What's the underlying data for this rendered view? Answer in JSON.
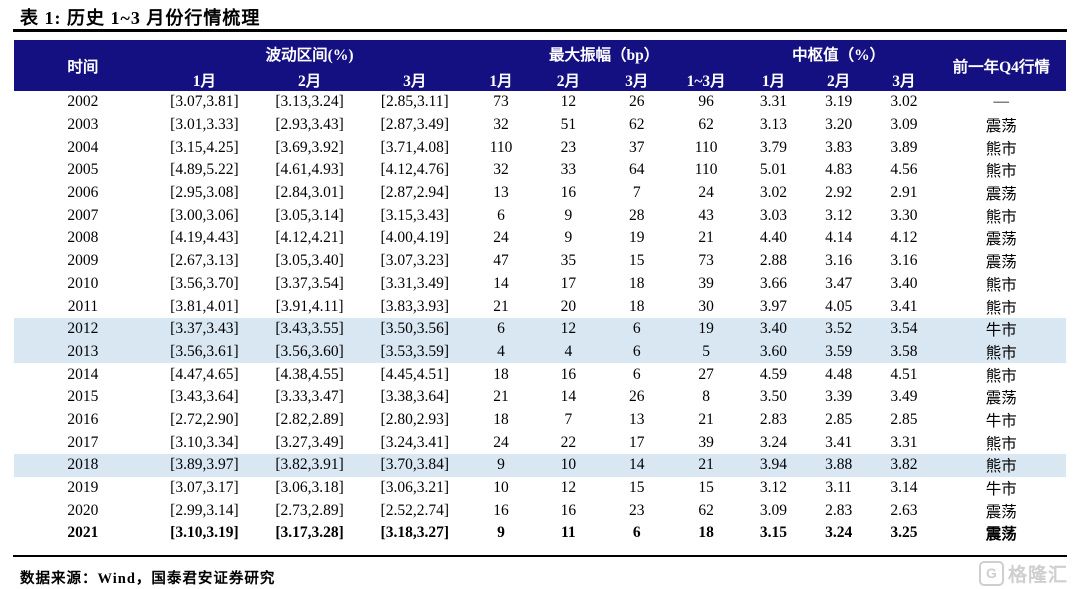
{
  "page": {
    "title": "表 1:  历史 1~3 月份行情梳理",
    "source_note": "数据来源：Wind，国泰君安证券研究",
    "watermark": {
      "icon_letter": "G",
      "text": "格隆汇"
    }
  },
  "colors": {
    "header_bg": "#141082",
    "row_highlight": "#D9E7F3",
    "watermark_gray": "#CFCFCF"
  },
  "table": {
    "col_time": "时间",
    "col_q4": "前一年Q4行情",
    "group_range": {
      "label": "波动区间(%)",
      "sub": [
        "1月",
        "2月",
        "3月"
      ]
    },
    "group_amplitude": {
      "label": "最大振幅（bp）",
      "sub": [
        "1月",
        "2月",
        "3月",
        "1~3月"
      ]
    },
    "group_center": {
      "label": "中枢值（%）",
      "sub": [
        "1月",
        "2月",
        "3月"
      ]
    },
    "row_keys": [
      "year",
      "w1",
      "w2",
      "w3",
      "a1",
      "a2",
      "a3",
      "a13",
      "c1",
      "c2",
      "c3",
      "q4"
    ],
    "highlight_years": [
      "2012",
      "2013",
      "2018"
    ],
    "bold_years": [
      "2021"
    ],
    "rows": [
      [
        "2002",
        "[3.07,3.81]",
        "[3.13,3.24]",
        "[2.85,3.11]",
        "73",
        "12",
        "26",
        "96",
        "3.31",
        "3.19",
        "3.02",
        "—"
      ],
      [
        "2003",
        "[3.01,3.33]",
        "[2.93,3.43]",
        "[2.87,3.49]",
        "32",
        "51",
        "62",
        "62",
        "3.13",
        "3.20",
        "3.09",
        "震荡"
      ],
      [
        "2004",
        "[3.15,4.25]",
        "[3.69,3.92]",
        "[3.71,4.08]",
        "110",
        "23",
        "37",
        "110",
        "3.79",
        "3.83",
        "3.89",
        "熊市"
      ],
      [
        "2005",
        "[4.89,5.22]",
        "[4.61,4.93]",
        "[4.12,4.76]",
        "32",
        "33",
        "64",
        "110",
        "5.01",
        "4.83",
        "4.56",
        "熊市"
      ],
      [
        "2006",
        "[2.95,3.08]",
        "[2.84,3.01]",
        "[2.87,2.94]",
        "13",
        "16",
        "7",
        "24",
        "3.02",
        "2.92",
        "2.91",
        "震荡"
      ],
      [
        "2007",
        "[3.00,3.06]",
        "[3.05,3.14]",
        "[3.15,3.43]",
        "6",
        "9",
        "28",
        "43",
        "3.03",
        "3.12",
        "3.30",
        "熊市"
      ],
      [
        "2008",
        "[4.19,4.43]",
        "[4.12,4.21]",
        "[4.00,4.19]",
        "24",
        "9",
        "19",
        "21",
        "4.40",
        "4.14",
        "4.12",
        "震荡"
      ],
      [
        "2009",
        "[2.67,3.13]",
        "[3.05,3.40]",
        "[3.07,3.23]",
        "47",
        "35",
        "15",
        "73",
        "2.88",
        "3.16",
        "3.16",
        "震荡"
      ],
      [
        "2010",
        "[3.56,3.70]",
        "[3.37,3.54]",
        "[3.31,3.49]",
        "14",
        "17",
        "18",
        "39",
        "3.66",
        "3.47",
        "3.40",
        "熊市"
      ],
      [
        "2011",
        "[3.81,4.01]",
        "[3.91,4.11]",
        "[3.83,3.93]",
        "21",
        "20",
        "18",
        "30",
        "3.97",
        "4.05",
        "3.41",
        "熊市"
      ],
      [
        "2012",
        "[3.37,3.43]",
        "[3.43,3.55]",
        "[3.50,3.56]",
        "6",
        "12",
        "6",
        "19",
        "3.40",
        "3.52",
        "3.54",
        "牛市"
      ],
      [
        "2013",
        "[3.56,3.61]",
        "[3.56,3.60]",
        "[3.53,3.59]",
        "4",
        "4",
        "6",
        "5",
        "3.60",
        "3.59",
        "3.58",
        "熊市"
      ],
      [
        "2014",
        "[4.47,4.65]",
        "[4.38,4.55]",
        "[4.45,4.51]",
        "18",
        "16",
        "6",
        "27",
        "4.59",
        "4.48",
        "4.51",
        "熊市"
      ],
      [
        "2015",
        "[3.43,3.64]",
        "[3.33,3.47]",
        "[3.38,3.64]",
        "21",
        "14",
        "26",
        "8",
        "3.50",
        "3.39",
        "3.49",
        "震荡"
      ],
      [
        "2016",
        "[2.72,2.90]",
        "[2.82,2.89]",
        "[2.80,2.93]",
        "18",
        "7",
        "13",
        "21",
        "2.83",
        "2.85",
        "2.85",
        "牛市"
      ],
      [
        "2017",
        "[3.10,3.34]",
        "[3.27,3.49]",
        "[3.24,3.41]",
        "24",
        "22",
        "17",
        "39",
        "3.24",
        "3.41",
        "3.31",
        "熊市"
      ],
      [
        "2018",
        "[3.89,3.97]",
        "[3.82,3.91]",
        "[3.70,3.84]",
        "9",
        "10",
        "14",
        "21",
        "3.94",
        "3.88",
        "3.82",
        "熊市"
      ],
      [
        "2019",
        "[3.07,3.17]",
        "[3.06,3.18]",
        "[3.06,3.21]",
        "10",
        "12",
        "15",
        "15",
        "3.12",
        "3.11",
        "3.14",
        "牛市"
      ],
      [
        "2020",
        "[2.99,3.14]",
        "[2.73,2.89]",
        "[2.52,2.74]",
        "16",
        "16",
        "23",
        "62",
        "3.09",
        "2.83",
        "2.63",
        "震荡"
      ],
      [
        "2021",
        "[3.10,3.19]",
        "[3.17,3.28]",
        "[3.18,3.27]",
        "9",
        "11",
        "6",
        "18",
        "3.15",
        "3.24",
        "3.25",
        "震荡"
      ]
    ]
  }
}
